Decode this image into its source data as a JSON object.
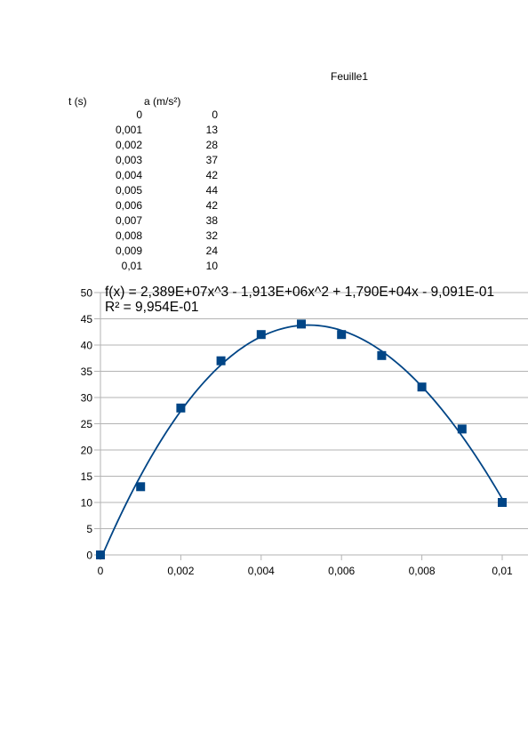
{
  "sheet": {
    "title": "Feuille1"
  },
  "table": {
    "headers": {
      "t": "t (s)",
      "a": "a (m/s²)"
    },
    "rows": [
      {
        "t": "0",
        "a": "0"
      },
      {
        "t": "0,001",
        "a": "13"
      },
      {
        "t": "0,002",
        "a": "28"
      },
      {
        "t": "0,003",
        "a": "37"
      },
      {
        "t": "0,004",
        "a": "42"
      },
      {
        "t": "0,005",
        "a": "44"
      },
      {
        "t": "0,006",
        "a": "42"
      },
      {
        "t": "0,007",
        "a": "38"
      },
      {
        "t": "0,008",
        "a": "32"
      },
      {
        "t": "0,009",
        "a": "24"
      },
      {
        "t": "0,01",
        "a": "10"
      }
    ]
  },
  "chart_data": {
    "type": "scatter",
    "x": [
      0,
      0.001,
      0.002,
      0.003,
      0.004,
      0.005,
      0.006,
      0.007,
      0.008,
      0.009,
      0.01
    ],
    "y": [
      0,
      13,
      28,
      37,
      42,
      44,
      42,
      38,
      32,
      24,
      10
    ],
    "xlim": [
      0,
      0.01
    ],
    "ylim": [
      0,
      50
    ],
    "xticks": [
      0,
      0.002,
      0.004,
      0.006,
      0.008,
      0.01
    ],
    "xtick_labels": [
      "0",
      "0,002",
      "0,004",
      "0,006",
      "0,008",
      "0,01"
    ],
    "yticks": [
      0,
      5,
      10,
      15,
      20,
      25,
      30,
      35,
      40,
      45,
      50
    ],
    "ytick_labels": [
      "0",
      "5",
      "10",
      "15",
      "20",
      "25",
      "30",
      "35",
      "40",
      "45",
      "50"
    ],
    "grid": "horizontal",
    "trendline": {
      "type": "polynomial",
      "order": 3,
      "coefficients": [
        23890000,
        -1913000,
        17900,
        -0.9091
      ],
      "equation": "f(x) = 2,389E+07x^3 - 1,913E+06x^2 + 1,790E+04x - 9,091E-01",
      "r_squared": "R² = 9,954E-01"
    },
    "colors": {
      "marker": "#004586",
      "line": "#004586",
      "grid": "#b3b3b3"
    }
  }
}
